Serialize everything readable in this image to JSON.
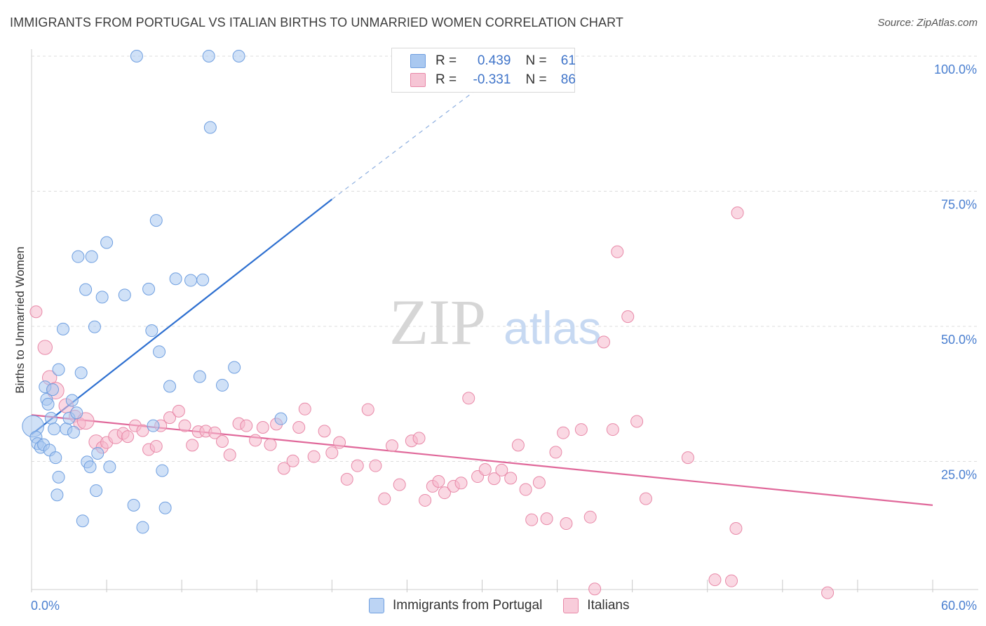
{
  "title": "IMMIGRANTS FROM PORTUGAL VS ITALIAN BIRTHS TO UNMARRIED WOMEN CORRELATION CHART",
  "source": "Source: ZipAtlas.com",
  "watermark": {
    "zip": "ZIP",
    "atlas": "atlas"
  },
  "legend_top": {
    "rows": [
      {
        "r_label": "R =",
        "r_value": "0.439",
        "n_label": "N =",
        "n_value": "61"
      },
      {
        "r_label": "R =",
        "r_value": "-0.331",
        "n_label": "N =",
        "n_value": "86"
      }
    ]
  },
  "legend_bottom": [
    "Immigrants from Portugal",
    "Italians"
  ],
  "colors": {
    "blue_fill": "#a9c8f0",
    "blue_stroke": "#6f9fe0",
    "blue_line": "#2d6fd0",
    "pink_fill": "#f6b8cc",
    "pink_stroke": "#e889a8",
    "pink_line": "#e0689a",
    "tick_text": "#4a7fd0",
    "grid": "#dcdcdc"
  },
  "chart_data": {
    "type": "scatter",
    "title": "IMMIGRANTS FROM PORTUGAL VS ITALIAN BIRTHS TO UNMARRIED WOMEN CORRELATION CHART",
    "xlabel": "",
    "ylabel": "Births to Unmarried Women",
    "xlim": [
      0,
      60
    ],
    "ylim": [
      0,
      105
    ],
    "x_tick_labels": [
      "0.0%",
      "60.0%"
    ],
    "y_ticks": [
      25,
      50,
      75,
      100
    ],
    "y_tick_labels": [
      "25.0%",
      "50.0%",
      "75.0%",
      "100.0%"
    ],
    "grid": true,
    "legend_position": "top-center",
    "series": [
      {
        "name": "Immigrants from Portugal",
        "r": 0.439,
        "n": 61,
        "trend": {
          "x0": 0.0,
          "y0": 30.0,
          "x1": 20.0,
          "y1": 73.5,
          "dash_to_x": 30.0,
          "dash_to_y": 94.6
        },
        "points": [
          [
            0.1,
            31.5,
            18
          ],
          [
            0.3,
            29.5,
            10
          ],
          [
            0.4,
            28.3,
            10
          ],
          [
            0.6,
            27.6,
            10
          ],
          [
            0.8,
            28.1,
            10
          ],
          [
            0.9,
            38.8,
            10
          ],
          [
            1.0,
            36.5,
            10
          ],
          [
            1.1,
            35.6,
            10
          ],
          [
            1.2,
            27.1,
            10
          ],
          [
            1.3,
            33.0,
            10
          ],
          [
            1.4,
            38.3,
            10
          ],
          [
            1.5,
            31.0,
            10
          ],
          [
            1.6,
            25.7,
            10
          ],
          [
            1.7,
            18.8,
            10
          ],
          [
            1.8,
            22.1,
            10
          ],
          [
            1.8,
            42.0,
            10
          ],
          [
            2.1,
            49.5,
            10
          ],
          [
            2.3,
            31.0,
            10
          ],
          [
            2.5,
            33.0,
            10
          ],
          [
            2.7,
            36.3,
            10
          ],
          [
            2.8,
            30.4,
            10
          ],
          [
            3.0,
            34.0,
            10
          ],
          [
            3.1,
            62.9,
            10
          ],
          [
            3.3,
            41.4,
            10
          ],
          [
            3.4,
            14.0,
            10
          ],
          [
            3.6,
            56.8,
            10
          ],
          [
            3.7,
            24.9,
            10
          ],
          [
            3.9,
            24.0,
            10
          ],
          [
            4.0,
            62.9,
            10
          ],
          [
            4.2,
            49.9,
            10
          ],
          [
            4.3,
            19.6,
            10
          ],
          [
            4.4,
            26.5,
            10
          ],
          [
            4.7,
            55.4,
            10
          ],
          [
            5.0,
            65.5,
            10
          ],
          [
            5.2,
            24.0,
            10
          ],
          [
            6.2,
            55.8,
            10
          ],
          [
            6.8,
            16.9,
            10
          ],
          [
            7.0,
            100.0,
            10
          ],
          [
            7.4,
            12.8,
            10
          ],
          [
            7.8,
            56.9,
            10
          ],
          [
            8.0,
            49.2,
            10
          ],
          [
            8.1,
            31.6,
            10
          ],
          [
            8.3,
            69.6,
            10
          ],
          [
            8.5,
            45.3,
            10
          ],
          [
            8.7,
            23.3,
            10
          ],
          [
            8.9,
            16.4,
            10
          ],
          [
            9.2,
            38.9,
            10
          ],
          [
            9.6,
            58.8,
            10
          ],
          [
            10.6,
            58.5,
            10
          ],
          [
            11.2,
            40.7,
            10
          ],
          [
            11.4,
            58.6,
            10
          ],
          [
            11.8,
            100.0,
            10
          ],
          [
            11.9,
            86.8,
            10
          ],
          [
            12.7,
            39.1,
            10
          ],
          [
            13.5,
            42.4,
            10
          ],
          [
            13.8,
            100.0,
            10
          ],
          [
            16.6,
            32.9,
            10
          ]
        ]
      },
      {
        "name": "Italians",
        "r": -0.331,
        "n": 86,
        "trend": {
          "x0": 0.0,
          "y0": 33.6,
          "x1": 60.0,
          "y1": 16.9
        },
        "points": [
          [
            0.3,
            52.7,
            10
          ],
          [
            0.9,
            46.1,
            12
          ],
          [
            1.2,
            40.5,
            12
          ],
          [
            1.6,
            38.1,
            14
          ],
          [
            2.3,
            35.3,
            12
          ],
          [
            2.9,
            33.4,
            10
          ],
          [
            3.2,
            32.0,
            10
          ],
          [
            3.6,
            32.5,
            14
          ],
          [
            4.3,
            28.6,
            12
          ],
          [
            4.7,
            27.6,
            10
          ],
          [
            5.0,
            28.5,
            10
          ],
          [
            5.6,
            29.6,
            12
          ],
          [
            6.1,
            30.2,
            10
          ],
          [
            6.4,
            29.6,
            10
          ],
          [
            6.9,
            31.6,
            10
          ],
          [
            7.4,
            30.7,
            10
          ],
          [
            7.8,
            27.2,
            10
          ],
          [
            8.3,
            27.8,
            10
          ],
          [
            8.6,
            31.6,
            10
          ],
          [
            9.2,
            33.1,
            10
          ],
          [
            9.8,
            34.3,
            10
          ],
          [
            10.2,
            31.6,
            10
          ],
          [
            10.7,
            28.0,
            10
          ],
          [
            11.1,
            30.5,
            10
          ],
          [
            11.6,
            30.6,
            10
          ],
          [
            12.2,
            30.3,
            10
          ],
          [
            12.7,
            28.7,
            10
          ],
          [
            13.2,
            26.2,
            10
          ],
          [
            13.8,
            32.0,
            10
          ],
          [
            14.3,
            31.6,
            10
          ],
          [
            14.9,
            28.9,
            10
          ],
          [
            15.4,
            31.3,
            10
          ],
          [
            15.9,
            28.1,
            10
          ],
          [
            16.3,
            31.9,
            10
          ],
          [
            16.8,
            23.7,
            10
          ],
          [
            17.4,
            25.1,
            10
          ],
          [
            17.8,
            31.3,
            10
          ],
          [
            18.2,
            34.7,
            10
          ],
          [
            18.8,
            25.9,
            10
          ],
          [
            19.5,
            30.6,
            10
          ],
          [
            20.0,
            26.6,
            10
          ],
          [
            20.5,
            28.5,
            10
          ],
          [
            21.0,
            21.7,
            10
          ],
          [
            21.7,
            24.2,
            10
          ],
          [
            22.4,
            34.6,
            10
          ],
          [
            22.9,
            24.2,
            10
          ],
          [
            23.5,
            18.1,
            10
          ],
          [
            24.0,
            27.9,
            10
          ],
          [
            24.5,
            20.7,
            10
          ],
          [
            25.3,
            28.8,
            10
          ],
          [
            25.8,
            29.3,
            10
          ],
          [
            26.2,
            17.8,
            10
          ],
          [
            26.7,
            20.4,
            10
          ],
          [
            27.1,
            21.3,
            10
          ],
          [
            27.5,
            19.2,
            10
          ],
          [
            28.1,
            20.4,
            10
          ],
          [
            28.6,
            21.0,
            10
          ],
          [
            29.1,
            36.7,
            10
          ],
          [
            29.7,
            22.2,
            10
          ],
          [
            30.2,
            23.5,
            10
          ],
          [
            30.8,
            21.8,
            10
          ],
          [
            31.3,
            23.4,
            10
          ],
          [
            31.9,
            21.9,
            10
          ],
          [
            32.4,
            28.0,
            10
          ],
          [
            32.9,
            19.8,
            10
          ],
          [
            33.3,
            14.2,
            10
          ],
          [
            33.8,
            21.1,
            10
          ],
          [
            34.3,
            14.4,
            10
          ],
          [
            34.9,
            26.7,
            10
          ],
          [
            35.6,
            13.5,
            10
          ],
          [
            35.4,
            30.3,
            10
          ],
          [
            36.6,
            30.9,
            10
          ],
          [
            37.2,
            14.7,
            10
          ],
          [
            37.5,
            1.4,
            10
          ],
          [
            38.1,
            47.1,
            10
          ],
          [
            38.7,
            30.9,
            10
          ],
          [
            39.0,
            63.8,
            10
          ],
          [
            39.7,
            51.8,
            10
          ],
          [
            40.3,
            32.4,
            10
          ],
          [
            40.9,
            18.1,
            10
          ],
          [
            43.7,
            25.7,
            10
          ],
          [
            45.5,
            3.1,
            10
          ],
          [
            46.6,
            2.9,
            10
          ],
          [
            46.9,
            12.6,
            10
          ],
          [
            47.0,
            71.0,
            10
          ],
          [
            53.0,
            0.7,
            10
          ]
        ]
      }
    ]
  }
}
